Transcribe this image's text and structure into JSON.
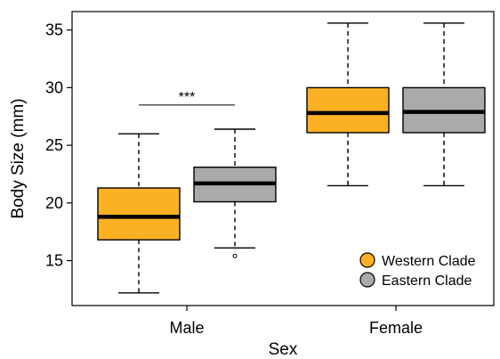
{
  "chart_data": {
    "type": "boxplot",
    "xlabel": "Sex",
    "ylabel": "Body Size (mm)",
    "ylim": [
      11.1,
      36.6
    ],
    "yticks": [
      15,
      20,
      25,
      30,
      35
    ],
    "categories": [
      "Male",
      "Female"
    ],
    "series": [
      {
        "name": "Western Clade",
        "color": "#fbb124",
        "boxes": [
          {
            "category": "Male",
            "min": 12.2,
            "q1": 16.8,
            "median": 18.8,
            "q3": 21.3,
            "max": 26.0,
            "outliers": []
          },
          {
            "category": "Female",
            "min": 21.5,
            "q1": 26.1,
            "median": 27.8,
            "q3": 30.0,
            "max": 35.6,
            "outliers": []
          }
        ]
      },
      {
        "name": "Eastern Clade",
        "color": "#aaaaaa",
        "boxes": [
          {
            "category": "Male",
            "min": 16.1,
            "q1": 20.1,
            "median": 21.7,
            "q3": 23.1,
            "max": 26.4,
            "outliers": [
              15.4
            ]
          },
          {
            "category": "Female",
            "min": 21.5,
            "q1": 26.1,
            "median": 27.9,
            "q3": 30.0,
            "max": 35.6,
            "outliers": []
          }
        ]
      }
    ],
    "annotations": [
      {
        "text": "***",
        "category": "Male",
        "y": 28.5
      }
    ],
    "legend": {
      "position": "bottom-right"
    },
    "grid": false
  }
}
